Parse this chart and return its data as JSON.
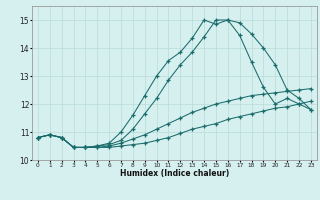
{
  "xlabel": "Humidex (Indice chaleur)",
  "bg_color": "#d6f0ef",
  "grid_color": "#b8dbd9",
  "line_color": "#1a6b6b",
  "xlim": [
    -0.5,
    23.5
  ],
  "ylim": [
    10,
    15.5
  ],
  "yticks": [
    10,
    11,
    12,
    13,
    14,
    15
  ],
  "xticks": [
    0,
    1,
    2,
    3,
    4,
    5,
    6,
    7,
    8,
    9,
    10,
    11,
    12,
    13,
    14,
    15,
    16,
    17,
    18,
    19,
    20,
    21,
    22,
    23
  ],
  "series1_x": [
    0,
    1,
    2,
    3,
    4,
    5,
    6,
    7,
    8,
    9,
    10,
    11,
    12,
    13,
    14,
    15,
    16,
    17,
    18,
    19,
    20,
    21,
    22,
    23
  ],
  "series1_y": [
    10.8,
    10.9,
    10.8,
    10.45,
    10.45,
    10.45,
    10.45,
    10.5,
    10.55,
    10.6,
    10.7,
    10.8,
    10.95,
    11.1,
    11.2,
    11.3,
    11.45,
    11.55,
    11.65,
    11.75,
    11.85,
    11.9,
    12.0,
    12.1
  ],
  "series2_x": [
    0,
    1,
    2,
    3,
    4,
    5,
    6,
    7,
    8,
    9,
    10,
    11,
    12,
    13,
    14,
    15,
    16,
    17,
    18,
    19,
    20,
    21,
    22,
    23
  ],
  "series2_y": [
    10.8,
    10.9,
    10.8,
    10.45,
    10.45,
    10.45,
    10.5,
    10.6,
    10.75,
    10.9,
    11.1,
    11.3,
    11.5,
    11.7,
    11.85,
    12.0,
    12.1,
    12.2,
    12.3,
    12.35,
    12.4,
    12.45,
    12.5,
    12.55
  ],
  "series3_x": [
    0,
    1,
    2,
    3,
    4,
    5,
    6,
    7,
    8,
    9,
    10,
    11,
    12,
    13,
    14,
    15,
    16,
    17,
    18,
    19,
    20,
    21,
    22,
    23
  ],
  "series3_y": [
    10.8,
    10.9,
    10.8,
    10.45,
    10.45,
    10.5,
    10.6,
    11.0,
    11.6,
    12.3,
    13.0,
    13.55,
    13.85,
    14.35,
    15.0,
    14.85,
    15.0,
    14.45,
    13.5,
    12.6,
    12.0,
    12.2,
    12.0,
    11.8
  ],
  "series4_x": [
    0,
    1,
    2,
    3,
    4,
    5,
    6,
    7,
    8,
    9,
    10,
    11,
    12,
    13,
    14,
    15,
    16,
    17,
    18,
    19,
    20,
    21,
    22,
    23
  ],
  "series4_y": [
    10.8,
    10.9,
    10.8,
    10.45,
    10.45,
    10.5,
    10.55,
    10.7,
    11.1,
    11.65,
    12.2,
    12.85,
    13.4,
    13.85,
    14.4,
    15.0,
    15.0,
    14.9,
    14.5,
    14.0,
    13.4,
    12.5,
    12.2,
    11.8
  ]
}
